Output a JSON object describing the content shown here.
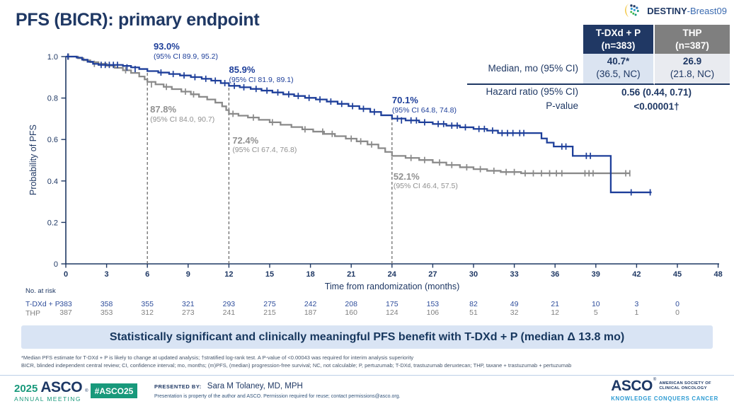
{
  "title": "PFS (BICR): primary endpoint",
  "logo": {
    "bold": "DESTINY",
    "rest": "-Breast09"
  },
  "colors": {
    "navy": "#1f3864",
    "curve_blue": "#1e3f9a",
    "curve_gray": "#8a8a8a",
    "banner_bg": "#d9e4f4",
    "green": "#18997b",
    "knowledge_blue": "#2d9bd3",
    "header_blue_bg": "#203864",
    "header_gray_bg": "#7f7f7f"
  },
  "results_table": {
    "col1": {
      "line1": "T-DXd + P",
      "line2": "(n=383)"
    },
    "col2": {
      "line1": "THP",
      "line2": "(n=387)"
    },
    "rows": [
      {
        "label": "Median, mo (95% CI)",
        "v1a": "40.7*",
        "v1b": "(36.5, NC)",
        "v2a": "26.9",
        "v2b": "(21.8, NC)"
      },
      {
        "label": "Hazard ratio (95% CI)",
        "value": "0.56 (0.44, 0.71)"
      },
      {
        "label": "P-value",
        "value": "<0.00001†"
      }
    ]
  },
  "chart_data": {
    "type": "line",
    "subtype": "kaplan-meier-step",
    "title": "PFS (BICR): primary endpoint",
    "xlabel": "Time from randomization (months)",
    "ylabel": "Probability of PFS",
    "xlim": [
      0,
      48
    ],
    "ylim": [
      0,
      1.0
    ],
    "xticks": [
      0,
      3,
      6,
      9,
      12,
      15,
      18,
      21,
      24,
      27,
      30,
      33,
      36,
      39,
      42,
      45,
      48
    ],
    "yticks": [
      0,
      0.2,
      0.4,
      0.6,
      0.8,
      1.0
    ],
    "grid": false,
    "landmarks": [
      {
        "month": 6,
        "prob": 0.93
      },
      {
        "month": 12,
        "prob": 0.859
      },
      {
        "month": 24,
        "prob": 0.701
      }
    ],
    "annotations": [
      {
        "pct": "93.0%",
        "ci": "(95% CI 89.9, 95.2)",
        "color": "blue",
        "x_month": 6.3,
        "y_prob": 1.075
      },
      {
        "pct": "85.9%",
        "ci": "(95% CI 81.9, 89.1)",
        "color": "blue",
        "x_month": 11.85,
        "y_prob": 0.962
      },
      {
        "pct": "70.1%",
        "ci": "(95% CI 64.8, 74.8)",
        "color": "blue",
        "x_month": 23.85,
        "y_prob": 0.815
      },
      {
        "pct": "87.8%",
        "ci": "(95% CI 84.0, 90.7)",
        "color": "gray",
        "x_month": 6.05,
        "y_prob": 0.77
      },
      {
        "pct": "72.4%",
        "ci": "(95% CI 67.4, 76.8)",
        "color": "gray",
        "x_month": 12.1,
        "y_prob": 0.622
      },
      {
        "pct": "52.1%",
        "ci": "(95% CI 46.4, 57.5)",
        "color": "gray",
        "x_month": 23.95,
        "y_prob": 0.448
      }
    ],
    "series": [
      {
        "key": "tdxd",
        "name": "T-DXd + P",
        "color": "#1e3f9a",
        "steps": [
          [
            0,
            1.0
          ],
          [
            0.8,
            0.995
          ],
          [
            1.2,
            0.985
          ],
          [
            1.6,
            0.975
          ],
          [
            2.0,
            0.965
          ],
          [
            2.4,
            0.96
          ],
          [
            4.2,
            0.955
          ],
          [
            4.8,
            0.948
          ],
          [
            5.4,
            0.94
          ],
          [
            6.0,
            0.93
          ],
          [
            6.8,
            0.923
          ],
          [
            7.6,
            0.916
          ],
          [
            8.4,
            0.909
          ],
          [
            9.2,
            0.901
          ],
          [
            10.0,
            0.893
          ],
          [
            10.7,
            0.884
          ],
          [
            11.4,
            0.872
          ],
          [
            12.0,
            0.859
          ],
          [
            12.8,
            0.852
          ],
          [
            13.6,
            0.844
          ],
          [
            14.4,
            0.836
          ],
          [
            15.2,
            0.827
          ],
          [
            16.0,
            0.818
          ],
          [
            16.8,
            0.81
          ],
          [
            17.6,
            0.801
          ],
          [
            18.4,
            0.793
          ],
          [
            19.2,
            0.783
          ],
          [
            20.0,
            0.772
          ],
          [
            20.8,
            0.761
          ],
          [
            21.6,
            0.748
          ],
          [
            22.4,
            0.733
          ],
          [
            23.2,
            0.717
          ],
          [
            24.0,
            0.701
          ],
          [
            25.0,
            0.692
          ],
          [
            26.0,
            0.683
          ],
          [
            27.0,
            0.675
          ],
          [
            28.0,
            0.667
          ],
          [
            29.0,
            0.659
          ],
          [
            30.0,
            0.651
          ],
          [
            31.0,
            0.643
          ],
          [
            31.8,
            0.631
          ],
          [
            35.0,
            0.605
          ],
          [
            35.4,
            0.585
          ],
          [
            35.9,
            0.566
          ],
          [
            37.3,
            0.521
          ],
          [
            40.1,
            0.345
          ],
          [
            43.1,
            0.345
          ]
        ],
        "censors": [
          [
            0.15,
            1.0
          ],
          [
            2.6,
            0.96
          ],
          [
            2.9,
            0.96
          ],
          [
            3.2,
            0.96
          ],
          [
            3.5,
            0.96
          ],
          [
            3.8,
            0.96
          ],
          [
            4.5,
            0.948
          ],
          [
            5.1,
            0.94
          ],
          [
            7.0,
            0.923
          ],
          [
            7.9,
            0.916
          ],
          [
            8.7,
            0.909
          ],
          [
            9.5,
            0.901
          ],
          [
            10.3,
            0.893
          ],
          [
            11.0,
            0.884
          ],
          [
            11.7,
            0.872
          ],
          [
            12.4,
            0.859
          ],
          [
            13.1,
            0.852
          ],
          [
            14.0,
            0.844
          ],
          [
            14.8,
            0.836
          ],
          [
            15.6,
            0.827
          ],
          [
            16.4,
            0.818
          ],
          [
            17.1,
            0.81
          ],
          [
            17.9,
            0.801
          ],
          [
            18.7,
            0.793
          ],
          [
            19.5,
            0.783
          ],
          [
            20.3,
            0.772
          ],
          [
            21.1,
            0.761
          ],
          [
            21.9,
            0.748
          ],
          [
            22.7,
            0.733
          ],
          [
            24.4,
            0.701
          ],
          [
            24.7,
            0.692
          ],
          [
            25.4,
            0.692
          ],
          [
            25.8,
            0.692
          ],
          [
            26.4,
            0.683
          ],
          [
            27.4,
            0.675
          ],
          [
            27.8,
            0.675
          ],
          [
            28.4,
            0.667
          ],
          [
            28.8,
            0.667
          ],
          [
            29.4,
            0.659
          ],
          [
            30.4,
            0.651
          ],
          [
            30.8,
            0.651
          ],
          [
            31.4,
            0.643
          ],
          [
            32.1,
            0.631
          ],
          [
            32.5,
            0.631
          ],
          [
            32.9,
            0.631
          ],
          [
            33.4,
            0.631
          ],
          [
            33.7,
            0.631
          ],
          [
            36.5,
            0.566
          ],
          [
            36.8,
            0.566
          ],
          [
            38.3,
            0.521
          ],
          [
            38.6,
            0.521
          ],
          [
            41.6,
            0.345
          ],
          [
            43.0,
            0.345
          ]
        ]
      },
      {
        "key": "thp",
        "name": "THP",
        "color": "#8a8a8a",
        "steps": [
          [
            0,
            1.0
          ],
          [
            0.9,
            0.992
          ],
          [
            1.3,
            0.982
          ],
          [
            1.8,
            0.973
          ],
          [
            2.4,
            0.965
          ],
          [
            3.0,
            0.956
          ],
          [
            3.6,
            0.946
          ],
          [
            4.2,
            0.934
          ],
          [
            4.8,
            0.921
          ],
          [
            5.4,
            0.904
          ],
          [
            5.8,
            0.89
          ],
          [
            6.0,
            0.878
          ],
          [
            6.6,
            0.866
          ],
          [
            7.2,
            0.854
          ],
          [
            7.8,
            0.843
          ],
          [
            8.5,
            0.831
          ],
          [
            9.2,
            0.818
          ],
          [
            9.8,
            0.806
          ],
          [
            10.4,
            0.793
          ],
          [
            11.0,
            0.778
          ],
          [
            11.5,
            0.76
          ],
          [
            11.8,
            0.742
          ],
          [
            12.0,
            0.724
          ],
          [
            12.7,
            0.715
          ],
          [
            13.4,
            0.706
          ],
          [
            14.2,
            0.695
          ],
          [
            15.0,
            0.683
          ],
          [
            15.8,
            0.671
          ],
          [
            16.6,
            0.66
          ],
          [
            17.4,
            0.649
          ],
          [
            18.2,
            0.638
          ],
          [
            19.0,
            0.627
          ],
          [
            19.8,
            0.616
          ],
          [
            20.6,
            0.604
          ],
          [
            21.4,
            0.591
          ],
          [
            22.2,
            0.576
          ],
          [
            23.0,
            0.558
          ],
          [
            23.5,
            0.54
          ],
          [
            24.0,
            0.521
          ],
          [
            25.0,
            0.511
          ],
          [
            26.0,
            0.501
          ],
          [
            27.0,
            0.489
          ],
          [
            28.0,
            0.477
          ],
          [
            29.0,
            0.466
          ],
          [
            30.0,
            0.457
          ],
          [
            31.0,
            0.449
          ],
          [
            32.0,
            0.443
          ],
          [
            33.5,
            0.437
          ],
          [
            41.5,
            0.437
          ]
        ],
        "censors": [
          [
            0.2,
            1.0
          ],
          [
            2.1,
            0.965
          ],
          [
            4.4,
            0.934
          ],
          [
            6.3,
            0.866
          ],
          [
            7.4,
            0.854
          ],
          [
            8.8,
            0.831
          ],
          [
            9.4,
            0.818
          ],
          [
            12.3,
            0.724
          ],
          [
            13.8,
            0.706
          ],
          [
            15.2,
            0.683
          ],
          [
            17.6,
            0.649
          ],
          [
            18.9,
            0.638
          ],
          [
            19.6,
            0.627
          ],
          [
            21.0,
            0.604
          ],
          [
            21.7,
            0.591
          ],
          [
            22.5,
            0.576
          ],
          [
            25.4,
            0.511
          ],
          [
            26.4,
            0.501
          ],
          [
            27.5,
            0.489
          ],
          [
            28.4,
            0.477
          ],
          [
            29.5,
            0.466
          ],
          [
            30.5,
            0.457
          ],
          [
            31.5,
            0.449
          ],
          [
            32.4,
            0.443
          ],
          [
            33.0,
            0.443
          ],
          [
            33.8,
            0.437
          ],
          [
            34.4,
            0.437
          ],
          [
            35.0,
            0.437
          ],
          [
            35.6,
            0.437
          ],
          [
            36.1,
            0.437
          ],
          [
            36.5,
            0.437
          ],
          [
            38.2,
            0.437
          ],
          [
            38.5,
            0.437
          ],
          [
            38.8,
            0.437
          ],
          [
            41.2,
            0.437
          ],
          [
            41.5,
            0.437
          ]
        ]
      }
    ]
  },
  "at_risk": {
    "header": "No. at risk",
    "rows": [
      {
        "label": "T-DXd + P",
        "values": [
          383,
          358,
          355,
          321,
          293,
          275,
          242,
          208,
          175,
          153,
          82,
          49,
          21,
          10,
          3,
          0
        ]
      },
      {
        "label": "THP",
        "values": [
          387,
          353,
          312,
          273,
          241,
          215,
          187,
          160,
          124,
          106,
          51,
          32,
          12,
          5,
          1,
          0
        ]
      }
    ]
  },
  "banner": "Statistically significant and clinically meaningful PFS benefit with T-DXd + P (median Δ 13.8 mo)",
  "footnotes": [
    "*Median PFS estimate for T-DXd + P is likely to change at updated analysis; †stratified log-rank test. A P-value of <0.00043 was required for interim analysis superiority",
    "BICR, blinded independent central review; CI, confidence interval; mo, months; (m)PFS, (median) progression-free survival; NC, not calculable; P, pertuzumab; T-DXd, trastuzumab deruxtecan; THP, taxane + trastuzumab + pertuzumab"
  ],
  "footer": {
    "meeting_year": "2025",
    "meeting_asco": "ASCO",
    "meeting_reg": "®",
    "meeting_line2": "ANNUAL MEETING",
    "hashtag": "#ASCO25",
    "presented_by_label": "PRESENTED BY:",
    "presenter": "Sara M Tolaney, MD, MPH",
    "fine_print": "Presentation is property of the author and ASCO. Permission required for reuse; contact permissions@asco.org.",
    "asco_logo": "ASCO",
    "asco_reg": "®",
    "asco_soc1": "AMERICAN SOCIETY OF",
    "asco_soc2": "CLINICAL ONCOLOGY",
    "asco_tagline": "KNOWLEDGE CONQUERS CANCER"
  }
}
